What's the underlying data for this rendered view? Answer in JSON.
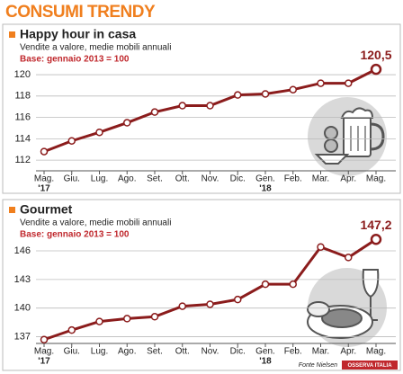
{
  "title": "CONSUMI TRENDY",
  "source": "Fonte Nielsen",
  "logo": "OSSERVA ITALIA",
  "chart_data": [
    {
      "type": "line",
      "title": "Happy hour in casa",
      "subtitle": "Vendite a valore, medie mobili annuali",
      "note": "Base: gennaio 2013 = 100",
      "categories": [
        "Mag.",
        "Giu.",
        "Lug.",
        "Ago.",
        "Set.",
        "Ott.",
        "Nov.",
        "Dic.",
        "Gen.",
        "Feb.",
        "Mar.",
        "Apr.",
        "Mag."
      ],
      "category_years": [
        "'17",
        null,
        null,
        null,
        null,
        null,
        null,
        null,
        "'18",
        null,
        null,
        null,
        null
      ],
      "values": [
        112.8,
        113.8,
        114.6,
        115.5,
        116.5,
        117.1,
        117.1,
        118.1,
        118.2,
        118.6,
        119.2,
        119.2,
        120.5
      ],
      "value_labels": [
        null,
        null,
        null,
        null,
        null,
        null,
        null,
        null,
        null,
        null,
        null,
        null,
        "120,5"
      ],
      "color": "#8b1c1c",
      "ylim": [
        111,
        121.1
      ],
      "yticks": [
        112,
        114,
        116,
        118,
        120
      ],
      "grid": true
    },
    {
      "type": "line",
      "title": "Gourmet",
      "subtitle": "Vendite a valore, medie mobili annuali",
      "note": "Base: gennaio 2013 = 100",
      "categories": [
        "Mag.",
        "Giu.",
        "Lug.",
        "Ago.",
        "Set.",
        "Ott.",
        "Nov.",
        "Dic.",
        "Gen.",
        "Feb.",
        "Mar.",
        "Apr.",
        "Mag."
      ],
      "category_years": [
        "'17",
        null,
        null,
        null,
        null,
        null,
        null,
        null,
        "'18",
        null,
        null,
        null,
        null
      ],
      "values": [
        136.7,
        137.7,
        138.6,
        138.9,
        139.1,
        140.2,
        140.4,
        140.9,
        142.5,
        142.5,
        146.4,
        145.3,
        147.2
      ],
      "value_labels": [
        null,
        null,
        null,
        null,
        null,
        null,
        null,
        null,
        null,
        null,
        null,
        null,
        "147,2"
      ],
      "color": "#8b1c1c",
      "ylim": [
        136.3,
        147.6
      ],
      "yticks": [
        137,
        140,
        143,
        146
      ],
      "grid": true
    }
  ]
}
